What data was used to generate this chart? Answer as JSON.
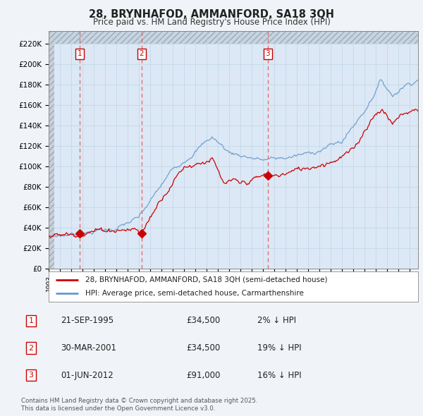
{
  "title": "28, BRYNHAFOD, AMMANFORD, SA18 3QH",
  "subtitle": "Price paid vs. HM Land Registry's House Price Index (HPI)",
  "background_color": "#f0f4f8",
  "plot_bg_color": "#dce8f5",
  "ylim": [
    0,
    232000
  ],
  "yticks": [
    0,
    20000,
    40000,
    60000,
    80000,
    100000,
    120000,
    140000,
    160000,
    180000,
    200000,
    220000
  ],
  "ytick_labels": [
    "£0",
    "£20K",
    "£40K",
    "£60K",
    "£80K",
    "£100K",
    "£120K",
    "£140K",
    "£160K",
    "£180K",
    "£200K",
    "£220K"
  ],
  "xlim_start": 1993.0,
  "xlim_end": 2025.75,
  "hatch_threshold": 220000,
  "transactions": [
    {
      "date": 1995.73,
      "price": 34500,
      "label": "1",
      "date_str": "21-SEP-1995",
      "price_str": "£34,500",
      "hpi_str": "2% ↓ HPI"
    },
    {
      "date": 2001.25,
      "price": 34500,
      "label": "2",
      "date_str": "30-MAR-2001",
      "price_str": "£34,500",
      "hpi_str": "19% ↓ HPI"
    },
    {
      "date": 2012.42,
      "price": 91000,
      "label": "3",
      "date_str": "01-JUN-2012",
      "price_str": "£91,000",
      "hpi_str": "16% ↓ HPI"
    }
  ],
  "legend_line1": "28, BRYNHAFOD, AMMANFORD, SA18 3QH (semi-detached house)",
  "legend_line2": "HPI: Average price, semi-detached house, Carmarthenshire",
  "footer1": "Contains HM Land Registry data © Crown copyright and database right 2025.",
  "footer2": "This data is licensed under the Open Government Licence v3.0.",
  "red_color": "#cc0000",
  "blue_color": "#6699cc",
  "vline_color": "#dd6666",
  "grid_color": "#b8cfe0"
}
